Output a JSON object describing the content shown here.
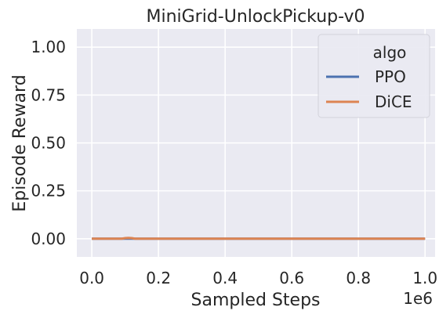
{
  "chart_data": {
    "type": "line",
    "title": "MiniGrid-UnlockPickup-v0",
    "xlabel": "Sampled Steps",
    "ylabel": "Episode Reward",
    "x_offset_text": "1e6",
    "xlim": [
      -0.045,
      1.03
    ],
    "ylim": [
      -0.095,
      1.095
    ],
    "xticks": [
      0.0,
      0.2,
      0.4,
      0.6,
      0.8,
      1.0
    ],
    "xtick_labels": [
      "0.0",
      "0.2",
      "0.4",
      "0.6",
      "0.8",
      "1.0"
    ],
    "yticks": [
      0.0,
      0.25,
      0.5,
      0.75,
      1.0
    ],
    "ytick_labels": [
      "0.00",
      "0.25",
      "0.50",
      "0.75",
      "1.00"
    ],
    "grid": true,
    "legend": {
      "title": "algo",
      "placement": "top-right"
    },
    "series": [
      {
        "name": "PPO",
        "color": "#4c72b0",
        "x": [
          0.0,
          0.01,
          0.02,
          0.05,
          0.1,
          0.2,
          0.4,
          0.6,
          0.8,
          1.0
        ],
        "y": [
          0.0,
          0.0,
          0.0,
          0.0,
          0.0,
          0.0,
          0.0,
          0.0,
          0.0,
          0.0
        ]
      },
      {
        "name": "DiCE",
        "color": "#dd8452",
        "x": [
          0.0,
          0.05,
          0.09,
          0.1,
          0.11,
          0.12,
          0.13,
          0.2,
          0.4,
          0.6,
          0.8,
          1.0
        ],
        "y": [
          0.0,
          0.0,
          0.0,
          0.003,
          0.004,
          0.003,
          0.0,
          0.0,
          0.0,
          0.0,
          0.0,
          0.0
        ]
      }
    ]
  }
}
